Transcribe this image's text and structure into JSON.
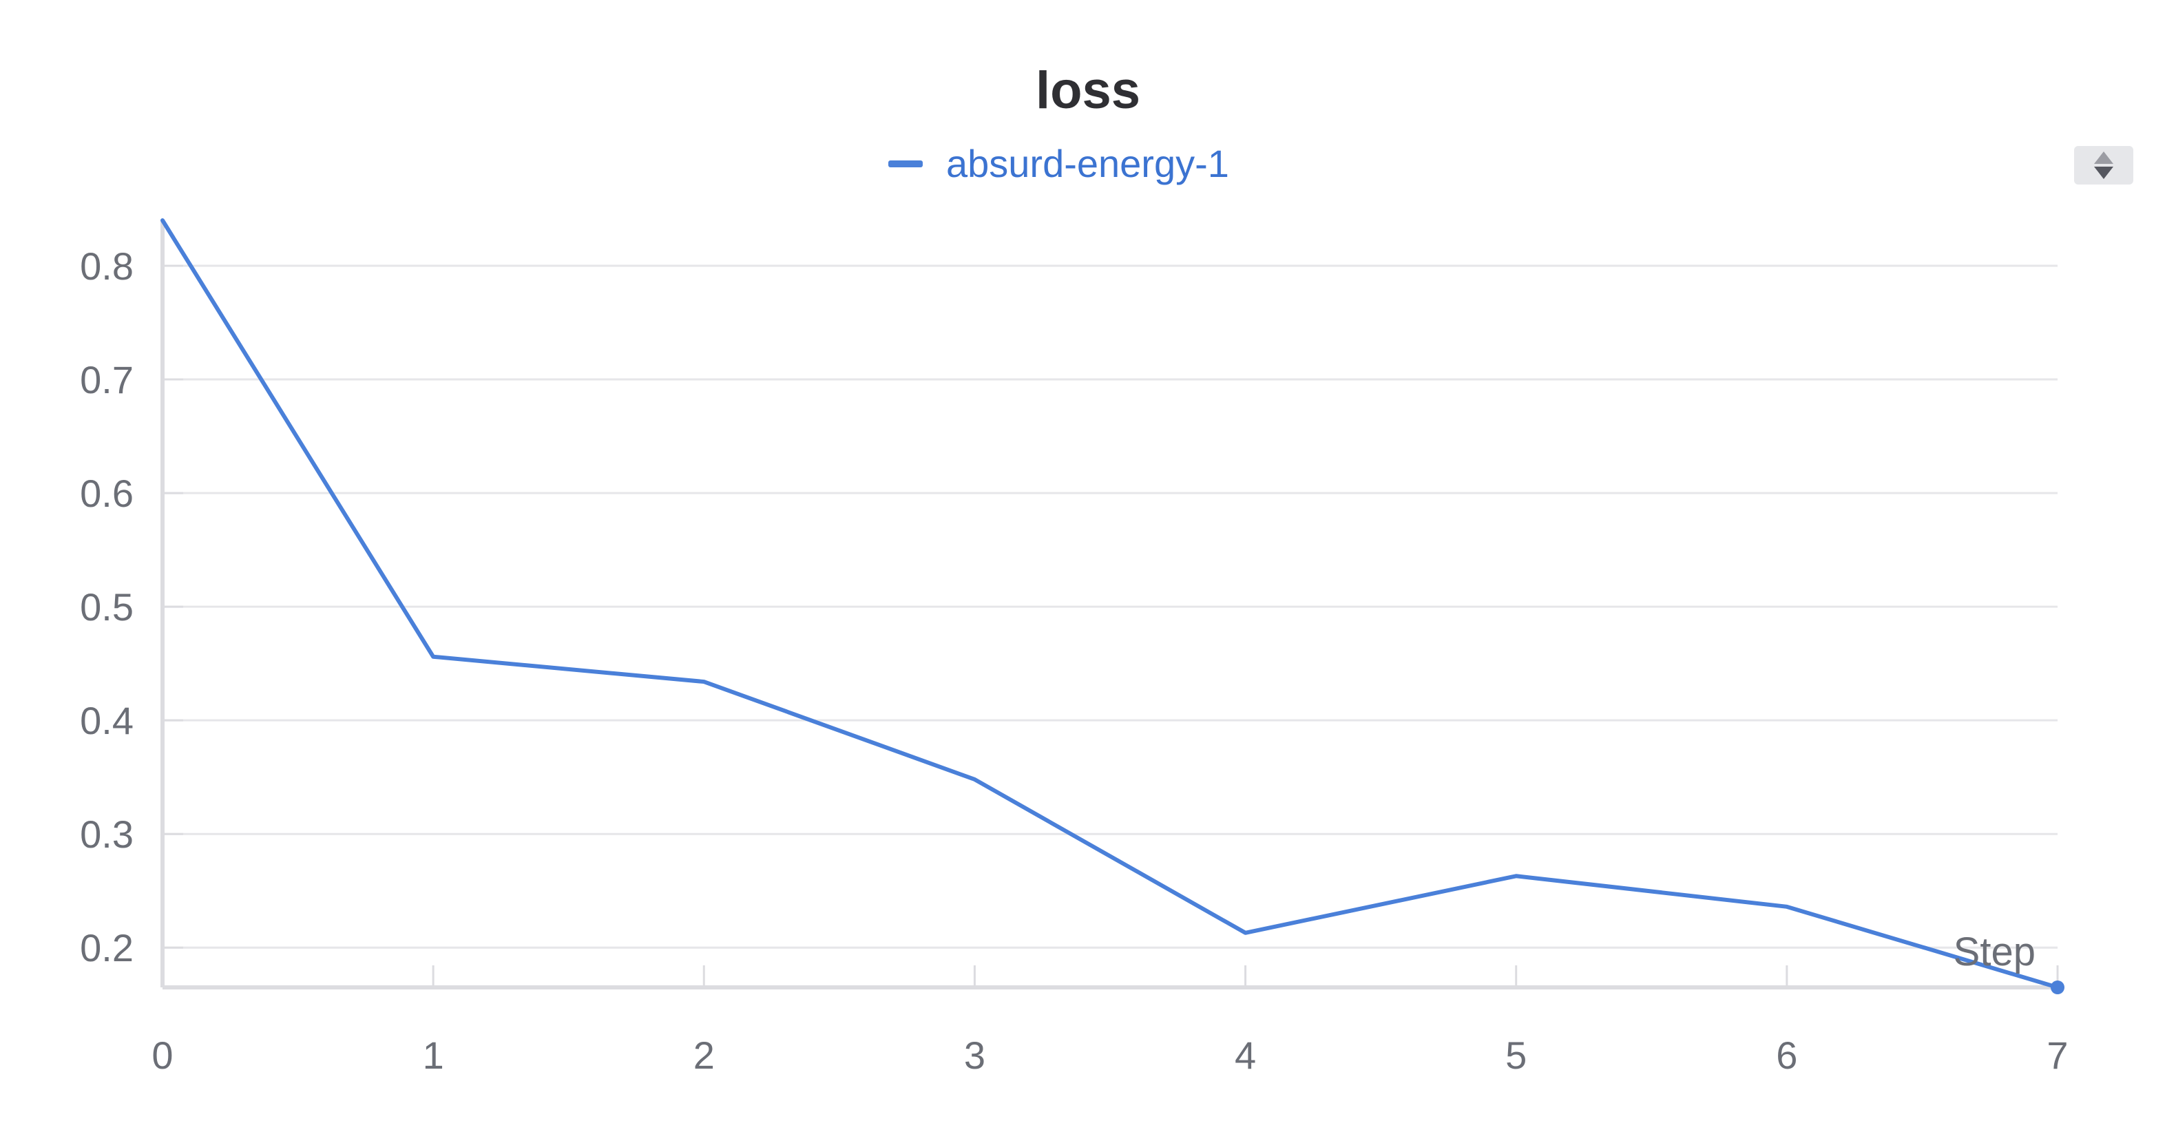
{
  "chart_data": {
    "type": "line",
    "title": "loss",
    "xlabel": "Step",
    "ylabel": "",
    "x": [
      0,
      1,
      2,
      3,
      4,
      5,
      6,
      7
    ],
    "series": [
      {
        "name": "absurd-energy-1",
        "values": [
          0.84,
          0.456,
          0.434,
          0.348,
          0.213,
          0.263,
          0.236,
          0.165
        ]
      }
    ],
    "x_ticks": [
      "0",
      "1",
      "2",
      "3",
      "4",
      "5",
      "6",
      "7"
    ],
    "y_ticks": [
      "0.2",
      "0.3",
      "0.4",
      "0.5",
      "0.6",
      "0.7",
      "0.8"
    ],
    "xlim": [
      0,
      7
    ],
    "ylim": [
      0.165,
      0.84
    ],
    "grid": "horizontal",
    "legend_position": "top-center",
    "colors": {
      "series": "#4a80d9",
      "legend_text": "#3b73d1",
      "grid": "#e6e6e9",
      "axis": "#dcdce0",
      "tick_text": "#6b6e76"
    }
  },
  "controls": {
    "sort_icon": "sort-icon"
  }
}
